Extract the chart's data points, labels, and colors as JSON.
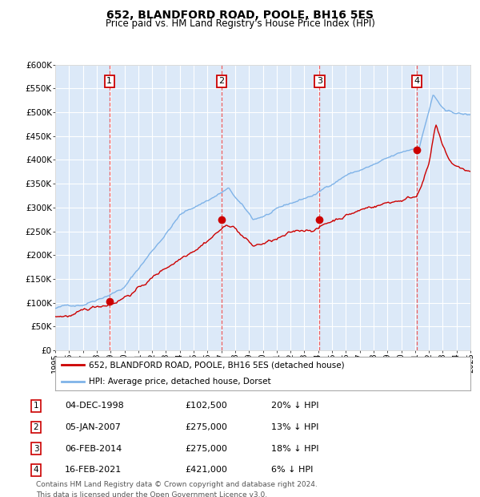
{
  "title": "652, BLANDFORD ROAD, POOLE, BH16 5ES",
  "subtitle": "Price paid vs. HM Land Registry's House Price Index (HPI)",
  "ylim": [
    0,
    600000
  ],
  "yticks": [
    0,
    50000,
    100000,
    150000,
    200000,
    250000,
    300000,
    350000,
    400000,
    450000,
    500000,
    550000,
    600000
  ],
  "ytick_labels": [
    "£0",
    "£50K",
    "£100K",
    "£150K",
    "£200K",
    "£250K",
    "£300K",
    "£350K",
    "£400K",
    "£450K",
    "£500K",
    "£550K",
    "£600K"
  ],
  "background_color": "#ffffff",
  "plot_bg_color": "#dce9f8",
  "grid_color": "#ffffff",
  "purchases": [
    {
      "label": "1",
      "date": 1998.92,
      "price": 102500
    },
    {
      "label": "2",
      "date": 2007.02,
      "price": 275000
    },
    {
      "label": "3",
      "date": 2014.09,
      "price": 275000
    },
    {
      "label": "4",
      "date": 2021.12,
      "price": 421000
    }
  ],
  "legend_line1": "652, BLANDFORD ROAD, POOLE, BH16 5ES (detached house)",
  "legend_line2": "HPI: Average price, detached house, Dorset",
  "table_entries": [
    {
      "num": "1",
      "date": "04-DEC-1998",
      "price": "£102,500",
      "hpi": "20% ↓ HPI"
    },
    {
      "num": "2",
      "date": "05-JAN-2007",
      "price": "£275,000",
      "hpi": "13% ↓ HPI"
    },
    {
      "num": "3",
      "date": "06-FEB-2014",
      "price": "£275,000",
      "hpi": "18% ↓ HPI"
    },
    {
      "num": "4",
      "date": "16-FEB-2021",
      "price": "£421,000",
      "hpi": "6% ↓ HPI"
    }
  ],
  "footnote1": "Contains HM Land Registry data © Crown copyright and database right 2024.",
  "footnote2": "This data is licensed under the Open Government Licence v3.0.",
  "red_line_color": "#cc0000",
  "blue_line_color": "#7fb3e8",
  "dot_color": "#cc0000",
  "vline_color": "#ee4444",
  "number_box_color": "#cc0000"
}
